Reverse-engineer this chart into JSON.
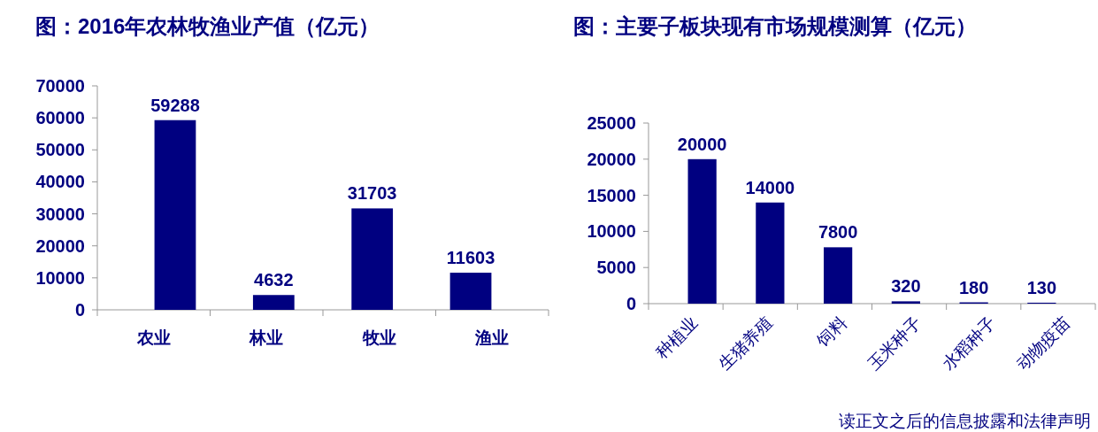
{
  "chart_data": [
    {
      "type": "bar",
      "title": "图：2016年农林牧渔业产值（亿元）",
      "categories": [
        "农业",
        "林业",
        "牧业",
        "渔业"
      ],
      "values": [
        59288,
        4632,
        31703,
        11603
      ],
      "color": "#000080",
      "ylim": [
        0,
        70000
      ],
      "yticks": [
        0,
        10000,
        20000,
        30000,
        40000,
        50000,
        60000,
        70000
      ],
      "data_labels": true
    },
    {
      "type": "bar",
      "title": "图：主要子板块现有市场规模测算（亿元）",
      "categories": [
        "种植业",
        "生猪养殖",
        "饲料",
        "玉米种子",
        "水稻种子",
        "动物疫苗"
      ],
      "values": [
        20000,
        14000,
        7800,
        320,
        180,
        130
      ],
      "color": "#000080",
      "ylim": [
        0,
        25000
      ],
      "yticks": [
        0,
        5000,
        10000,
        15000,
        20000,
        25000
      ],
      "data_labels": true,
      "annotations": [
        "读正文之后的信息披露和法律声明"
      ]
    }
  ]
}
